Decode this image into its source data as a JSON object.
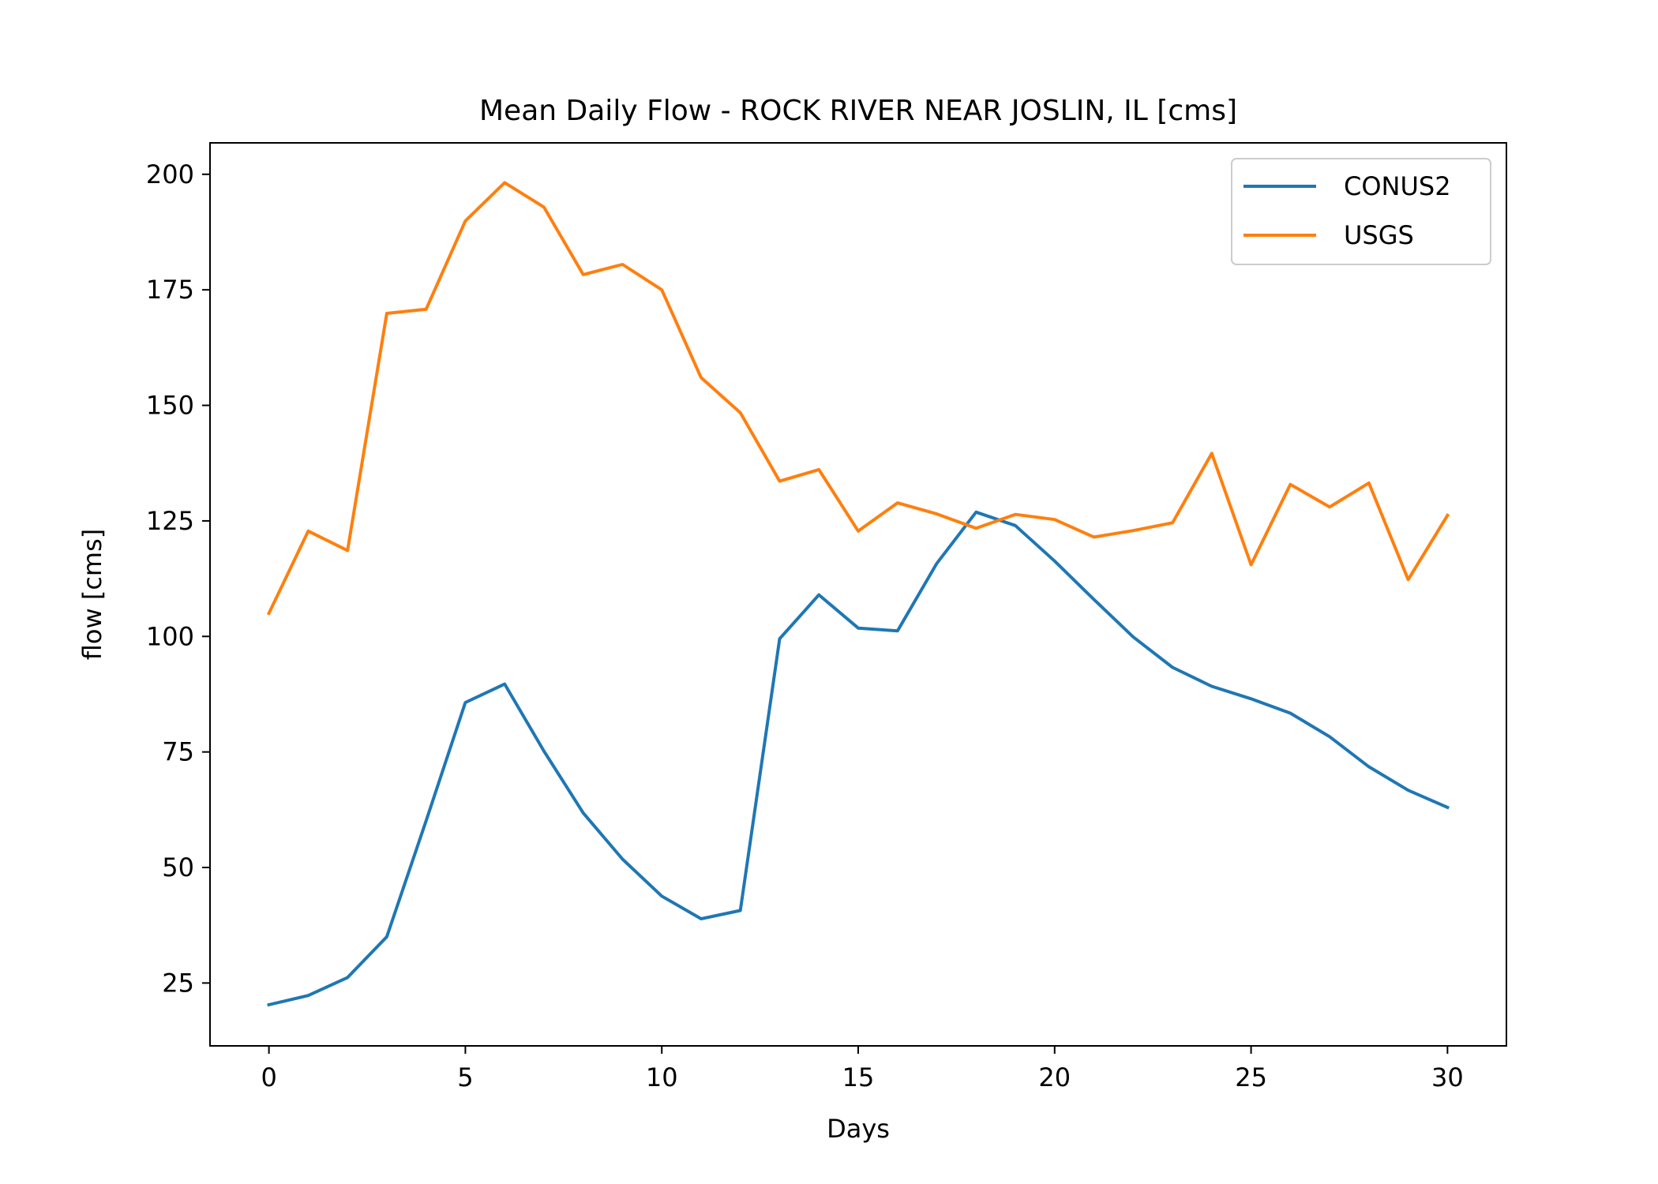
{
  "chart_data": {
    "type": "line",
    "title": "Mean Daily Flow - ROCK RIVER NEAR JOSLIN, IL [cms]",
    "xlabel": "Days",
    "ylabel": "flow [cms]",
    "xlim": [
      -1.5,
      31.5
    ],
    "ylim": [
      11.4,
      206.8
    ],
    "xticks": [
      0,
      5,
      10,
      15,
      20,
      25,
      30
    ],
    "yticks": [
      25,
      50,
      75,
      100,
      125,
      150,
      175,
      200
    ],
    "grid": false,
    "legend_position": "top-right",
    "x": [
      0,
      1,
      2,
      3,
      4,
      5,
      6,
      7,
      8,
      9,
      10,
      11,
      12,
      13,
      14,
      15,
      16,
      17,
      18,
      19,
      20,
      21,
      22,
      23,
      24,
      25,
      26,
      27,
      28,
      29,
      30
    ],
    "series": [
      {
        "name": "CONUS2",
        "color": "#1f77b4",
        "values": [
          20.3,
          22.3,
          26.2,
          35.0,
          60.1,
          85.7,
          89.7,
          75.2,
          61.8,
          51.8,
          43.8,
          38.9,
          40.7,
          99.5,
          109.0,
          101.8,
          101.2,
          115.8,
          126.9,
          124.0,
          116.3,
          108.0,
          99.9,
          93.3,
          89.2,
          86.5,
          83.4,
          78.3,
          71.8,
          66.7,
          63.0
        ]
      },
      {
        "name": "USGS",
        "color": "#ff7f0e",
        "values": [
          105.0,
          122.8,
          118.6,
          169.9,
          170.8,
          189.9,
          198.2,
          192.9,
          178.3,
          180.5,
          175.0,
          156.0,
          148.4,
          133.6,
          136.1,
          122.8,
          128.9,
          126.5,
          123.4,
          126.4,
          125.3,
          121.5,
          122.9,
          124.6,
          139.6,
          115.5,
          132.9,
          128.0,
          133.2,
          112.3,
          126.2
        ]
      }
    ]
  }
}
